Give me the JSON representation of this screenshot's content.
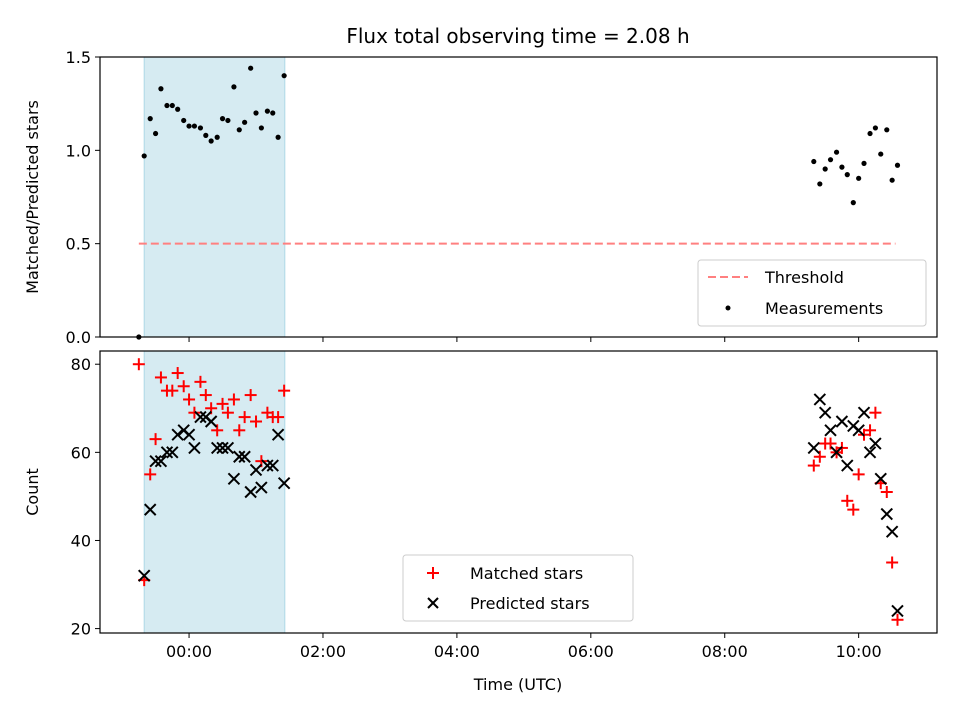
{
  "chart_data": {
    "title": "Flux total observing time = 2.08 h",
    "xlabel": "Time (UTC)",
    "x_unit": "hours (UTC, relative to 00:00)",
    "xlim": [
      -1.33,
      11.17
    ],
    "xticks": [
      0,
      2,
      4,
      6,
      8,
      10
    ],
    "xtick_labels": [
      "00:00",
      "02:00",
      "04:00",
      "06:00",
      "08:00",
      "10:00"
    ],
    "shaded_span": [
      -0.67,
      1.43
    ],
    "shaded_color": "#add8e6",
    "panels": [
      {
        "type": "scatter",
        "ylabel": "Matched/Predicted stars",
        "ylim": [
          0,
          1.5
        ],
        "yticks": [
          0,
          0.5,
          1.0,
          1.5
        ],
        "ytick_labels": [
          "0.0",
          "0.5",
          "1.0",
          "1.5"
        ],
        "threshold": {
          "name": "Threshold",
          "y": 0.5,
          "x_range": [
            -0.75,
            10.55
          ],
          "color": "#ff8080"
        },
        "series": [
          {
            "name": "Measurements",
            "color": "#000000",
            "marker": "dot",
            "points": [
              [
                -0.75,
                0.0
              ],
              [
                -0.67,
                0.97
              ],
              [
                -0.58,
                1.17
              ],
              [
                -0.5,
                1.09
              ],
              [
                -0.42,
                1.33
              ],
              [
                -0.33,
                1.24
              ],
              [
                -0.25,
                1.24
              ],
              [
                -0.17,
                1.22
              ],
              [
                -0.08,
                1.16
              ],
              [
                0.0,
                1.13
              ],
              [
                0.08,
                1.13
              ],
              [
                0.17,
                1.12
              ],
              [
                0.25,
                1.08
              ],
              [
                0.33,
                1.05
              ],
              [
                0.42,
                1.07
              ],
              [
                0.5,
                1.17
              ],
              [
                0.58,
                1.16
              ],
              [
                0.67,
                1.34
              ],
              [
                0.75,
                1.11
              ],
              [
                0.83,
                1.15
              ],
              [
                0.92,
                1.44
              ],
              [
                1.0,
                1.2
              ],
              [
                1.08,
                1.12
              ],
              [
                1.17,
                1.21
              ],
              [
                1.25,
                1.2
              ],
              [
                1.33,
                1.07
              ],
              [
                1.42,
                1.4
              ],
              [
                9.33,
                0.94
              ],
              [
                9.42,
                0.82
              ],
              [
                9.5,
                0.9
              ],
              [
                9.58,
                0.95
              ],
              [
                9.67,
                0.99
              ],
              [
                9.75,
                0.91
              ],
              [
                9.83,
                0.87
              ],
              [
                9.92,
                0.72
              ],
              [
                10.0,
                0.85
              ],
              [
                10.08,
                0.93
              ],
              [
                10.17,
                1.09
              ],
              [
                10.25,
                1.12
              ],
              [
                10.33,
                0.98
              ],
              [
                10.42,
                1.11
              ],
              [
                10.5,
                0.84
              ],
              [
                10.58,
                0.92
              ]
            ]
          }
        ],
        "legend_position": "lower right",
        "legend": [
          "Threshold",
          "Measurements"
        ]
      },
      {
        "type": "scatter",
        "ylabel": "Count",
        "ylim": [
          19,
          83
        ],
        "yticks": [
          20,
          40,
          60,
          80
        ],
        "ytick_labels": [
          "20",
          "40",
          "60",
          "80"
        ],
        "series": [
          {
            "name": "Matched stars",
            "color": "#ff0000",
            "marker": "plus",
            "points": [
              [
                -0.75,
                80
              ],
              [
                -0.67,
                31
              ],
              [
                -0.58,
                55
              ],
              [
                -0.5,
                63
              ],
              [
                -0.42,
                77
              ],
              [
                -0.33,
                74
              ],
              [
                -0.25,
                74
              ],
              [
                -0.17,
                78
              ],
              [
                -0.08,
                75
              ],
              [
                0.0,
                72
              ],
              [
                0.08,
                69
              ],
              [
                0.17,
                76
              ],
              [
                0.25,
                73
              ],
              [
                0.33,
                70
              ],
              [
                0.42,
                65
              ],
              [
                0.5,
                71
              ],
              [
                0.58,
                69
              ],
              [
                0.67,
                72
              ],
              [
                0.75,
                65
              ],
              [
                0.83,
                68
              ],
              [
                0.92,
                73
              ],
              [
                1.0,
                67
              ],
              [
                1.08,
                58
              ],
              [
                1.17,
                69
              ],
              [
                1.25,
                68
              ],
              [
                1.33,
                68
              ],
              [
                1.42,
                74
              ],
              [
                9.33,
                57
              ],
              [
                9.42,
                59
              ],
              [
                9.5,
                62
              ],
              [
                9.58,
                62
              ],
              [
                9.67,
                60
              ],
              [
                9.75,
                61
              ],
              [
                9.83,
                49
              ],
              [
                9.92,
                47
              ],
              [
                10.0,
                55
              ],
              [
                10.08,
                64
              ],
              [
                10.17,
                65
              ],
              [
                10.25,
                69
              ],
              [
                10.33,
                53
              ],
              [
                10.42,
                51
              ],
              [
                10.5,
                35
              ],
              [
                10.58,
                22
              ]
            ]
          },
          {
            "name": "Predicted stars",
            "color": "#000000",
            "marker": "x",
            "points": [
              [
                -0.67,
                32
              ],
              [
                -0.58,
                47
              ],
              [
                -0.5,
                58
              ],
              [
                -0.42,
                58
              ],
              [
                -0.33,
                60
              ],
              [
                -0.25,
                60
              ],
              [
                -0.17,
                64
              ],
              [
                -0.08,
                65
              ],
              [
                0.0,
                64
              ],
              [
                0.08,
                61
              ],
              [
                0.17,
                68
              ],
              [
                0.25,
                68
              ],
              [
                0.33,
                67
              ],
              [
                0.42,
                61
              ],
              [
                0.5,
                61
              ],
              [
                0.58,
                61
              ],
              [
                0.67,
                54
              ],
              [
                0.75,
                59
              ],
              [
                0.83,
                59
              ],
              [
                0.92,
                51
              ],
              [
                1.0,
                56
              ],
              [
                1.08,
                52
              ],
              [
                1.17,
                57
              ],
              [
                1.25,
                57
              ],
              [
                1.33,
                64
              ],
              [
                1.42,
                53
              ],
              [
                9.33,
                61
              ],
              [
                9.42,
                72
              ],
              [
                9.5,
                69
              ],
              [
                9.58,
                65
              ],
              [
                9.67,
                60
              ],
              [
                9.75,
                67
              ],
              [
                9.83,
                57
              ],
              [
                9.92,
                66
              ],
              [
                10.0,
                65
              ],
              [
                10.08,
                69
              ],
              [
                10.17,
                60
              ],
              [
                10.25,
                62
              ],
              [
                10.33,
                54
              ],
              [
                10.42,
                46
              ],
              [
                10.5,
                42
              ],
              [
                10.58,
                24
              ]
            ]
          }
        ],
        "legend_position": "lower center",
        "legend": [
          "Matched stars",
          "Predicted stars"
        ]
      }
    ]
  }
}
